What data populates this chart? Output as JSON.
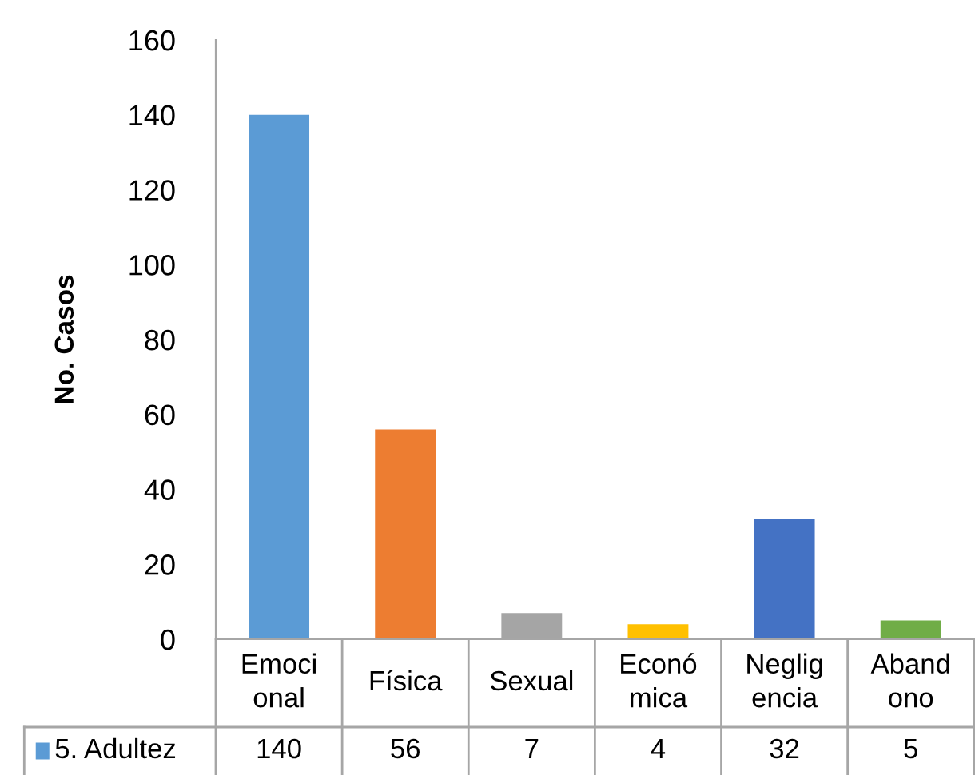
{
  "chart_data": {
    "type": "bar",
    "ylabel": "No. Casos",
    "categories": [
      "Emoci\nonal",
      "Física",
      "Sexual",
      "Econó\nmica",
      "Neglig\nencia",
      "Aband\nono"
    ],
    "series": [
      {
        "name": "5. Adultez",
        "color": "#5b9bd5",
        "colors": [
          "#5b9bd5",
          "#ed7d31",
          "#a5a5a5",
          "#ffc000",
          "#4472c4",
          "#70ad47"
        ],
        "values": [
          140,
          56,
          7,
          4,
          32,
          5
        ]
      }
    ],
    "ylim": [
      0,
      160
    ],
    "yticks": [
      0,
      20,
      40,
      60,
      80,
      100,
      120,
      140,
      160
    ],
    "grid": false,
    "legend": "bottom",
    "data_labels": true
  }
}
